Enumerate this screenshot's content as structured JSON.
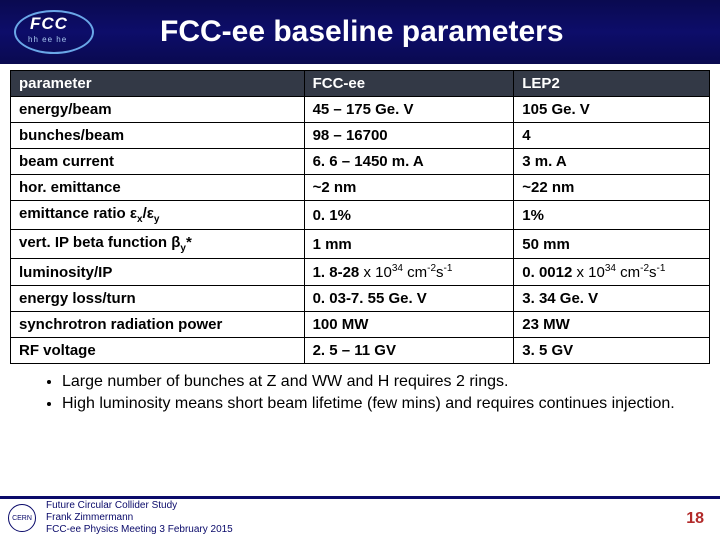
{
  "header": {
    "logo_text": "FCC",
    "logo_sub": "hh  ee  he",
    "title": "FCC-ee baseline parameters"
  },
  "table": {
    "columns": [
      "parameter",
      "FCC-ee",
      "LEP2"
    ],
    "rows": [
      {
        "param": "energy/beam",
        "fcc": "45 – 175 Ge. V",
        "lep": "105 Ge. V"
      },
      {
        "param": "bunches/beam",
        "fcc": "98 – 16700",
        "lep": "4"
      },
      {
        "param": "beam current",
        "fcc": "6. 6 – 1450 m. A",
        "lep": "3 m. A"
      },
      {
        "param": "hor. emittance",
        "fcc": "~2 nm",
        "lep": "~22 nm"
      },
      {
        "param_html": "emittance ratio ε<sub>x</sub>/ε<sub>y</sub>",
        "fcc": "0. 1%",
        "lep": "1%"
      },
      {
        "param_html": "vert. IP beta function β<sub>y</sub>*",
        "fcc": "1 mm",
        "lep": "50 mm"
      },
      {
        "param": "luminosity/IP",
        "fcc_html": "1. 8-28 <span class='norm'>x 10<sup>34</sup> cm<sup>-2</sup>s<sup>-1</sup></span>",
        "lep_html": "0. 0012 <span class='norm'>x 10<sup>34</sup> cm<sup>-2</sup>s<sup>-1</sup></span>"
      },
      {
        "param": "energy loss/turn",
        "fcc": "0. 03-7. 55 Ge. V",
        "lep": "3. 34 Ge. V"
      },
      {
        "param": "synchrotron radiation power",
        "fcc": "100 MW",
        "lep": "23 MW"
      },
      {
        "param": "RF voltage",
        "fcc": "2. 5 – 11 GV",
        "lep": "3. 5 GV"
      }
    ]
  },
  "bullets": [
    "Large number of bunches at Z and WW and H requires 2 rings.",
    "High luminosity means short beam lifetime (few mins) and requires continues injection."
  ],
  "footer": {
    "org": "CERN",
    "line1": "Future Circular Collider Study",
    "line2": "Frank Zimmermann",
    "line3": "FCC-ee Physics Meeting 3 February 2015",
    "page": "18"
  },
  "style": {
    "header_bg": "#0a0a50",
    "header_text": "#ffffff",
    "table_header_bg": "#333946",
    "table_header_text": "#ffffff",
    "cell_border": "#000000",
    "page_num_color": "#b22a2a",
    "footer_color": "#0a0a6a",
    "title_fontsize": 30,
    "cell_fontsize": 15,
    "bullet_fontsize": 16,
    "footer_fontsize": 10
  }
}
